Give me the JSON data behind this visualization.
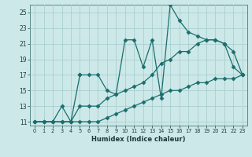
{
  "title": "",
  "xlabel": "Humidex (Indice chaleur)",
  "bg_color": "#cde8e8",
  "grid_color": "#aacece",
  "line_color": "#1a6e6e",
  "xlim": [
    -0.5,
    23.5
  ],
  "ylim": [
    10.5,
    26.0
  ],
  "yticks": [
    11,
    13,
    15,
    17,
    19,
    21,
    23,
    25
  ],
  "xticks": [
    0,
    1,
    2,
    3,
    4,
    5,
    6,
    7,
    8,
    9,
    10,
    11,
    12,
    13,
    14,
    15,
    16,
    17,
    18,
    19,
    20,
    21,
    22,
    23
  ],
  "series1_x": [
    0,
    1,
    2,
    3,
    4,
    5,
    5,
    6,
    7,
    8,
    9,
    10,
    11,
    12,
    13,
    14,
    15,
    16,
    17,
    18,
    19,
    20,
    21,
    22,
    23
  ],
  "series1_y": [
    11,
    11,
    11,
    11,
    11,
    17,
    17,
    17,
    17,
    15,
    14.5,
    21.5,
    21.5,
    18,
    21.5,
    14,
    26,
    24,
    22.5,
    22,
    21.5,
    21.5,
    21,
    18,
    17
  ],
  "series2_x": [
    0,
    1,
    2,
    3,
    4,
    5,
    6,
    7,
    8,
    9,
    10,
    11,
    12,
    13,
    14,
    15,
    16,
    17,
    18,
    19,
    20,
    21,
    22,
    23
  ],
  "series2_y": [
    11,
    11,
    11,
    13,
    11,
    13,
    13,
    13,
    14,
    14.5,
    15,
    15.5,
    16,
    17,
    18.5,
    19,
    20,
    20,
    21,
    21.5,
    21.5,
    21,
    20,
    17
  ],
  "series3_x": [
    0,
    1,
    2,
    3,
    4,
    5,
    6,
    7,
    8,
    9,
    10,
    11,
    12,
    13,
    14,
    15,
    16,
    17,
    18,
    19,
    20,
    21,
    22,
    23
  ],
  "series3_y": [
    11,
    11,
    11,
    11,
    11,
    11,
    11,
    11,
    11.5,
    12,
    12.5,
    13,
    13.5,
    14,
    14.5,
    15,
    15,
    15.5,
    16,
    16,
    16.5,
    16.5,
    16.5,
    17
  ]
}
